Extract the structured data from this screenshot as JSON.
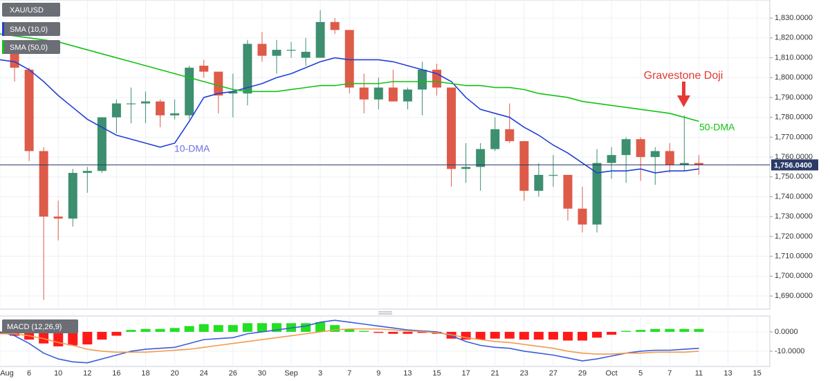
{
  "chart_data": [
    {
      "type": "candlestick",
      "title": "XAU/USD",
      "categories": [
        "Aug",
        null,
        "6",
        null,
        "10",
        null,
        "12",
        null,
        "16",
        null,
        "18",
        null,
        "20",
        null,
        "24",
        null,
        "26",
        null,
        "30",
        null,
        "Sep",
        null,
        "3",
        null,
        "7",
        null,
        "9",
        null,
        "13",
        null,
        "15",
        null,
        "17",
        null,
        "21",
        null,
        "23",
        null,
        "27",
        null,
        "29",
        null,
        "Oct",
        null,
        "5",
        null,
        "7",
        null,
        "11",
        null,
        "13",
        null,
        "15"
      ],
      "open": [
        null,
        1813,
        1804,
        1763,
        1730,
        1729,
        1752,
        1753,
        1780,
        1787,
        1787,
        1788,
        1781,
        1781,
        1806,
        1803,
        1792,
        1792,
        1817,
        1811,
        1814,
        1810,
        1810,
        1828,
        1824,
        1795,
        1789,
        1795,
        1788,
        1794,
        1804,
        1795,
        1754,
        1755,
        1764,
        1774,
        1768,
        1743,
        1751,
        1751,
        1734,
        1726,
        1757,
        1761,
        1769,
        1760,
        1763,
        1756,
        1757,
        null,
        null,
        null,
        null
      ],
      "high": [
        null,
        1816,
        1805,
        1765,
        1738,
        1754,
        1755,
        1780,
        1789,
        1795,
        1793,
        1789,
        1789,
        1806,
        1809,
        1803,
        1802,
        1819,
        1823,
        1819,
        1818,
        1820,
        1834,
        1830,
        1824,
        1802,
        1800,
        1804,
        1795,
        1808,
        1807,
        1795,
        1767,
        1767,
        1780,
        1787,
        1768,
        1757,
        1761,
        1751,
        1745,
        1764,
        1765,
        1770,
        1770,
        1765,
        1767,
        1781,
        1761,
        null,
        null,
        null,
        null
      ],
      "low": [
        null,
        1798,
        1758,
        1688,
        1718,
        1725,
        1742,
        1752,
        1772,
        1777,
        1777,
        1775,
        1779,
        1779,
        1800,
        1782,
        1780,
        1786,
        1808,
        1802,
        1810,
        1806,
        1810,
        1822,
        1792,
        1782,
        1784,
        1788,
        1784,
        1781,
        1791,
        1745,
        1747,
        1743,
        1763,
        1767,
        1738,
        1740,
        1745,
        1728,
        1722,
        1722,
        1749,
        1747,
        1748,
        1746,
        1752,
        1753,
        1751,
        null,
        null,
        null,
        null
      ],
      "close": [
        null,
        1805,
        1763,
        1730,
        1729,
        1752,
        1753,
        1780,
        1787,
        1787,
        1788,
        1781,
        1782,
        1805,
        1803,
        1791,
        1793,
        1817,
        1811,
        1814,
        1814,
        1813,
        1828,
        1824,
        1795,
        1789,
        1795,
        1788,
        1794,
        1804,
        1795,
        1754,
        1755,
        1764,
        1774,
        1768,
        1743,
        1751,
        1751,
        1734,
        1726,
        1757,
        1761,
        1769,
        1760,
        1763,
        1756,
        1757,
        1756,
        null,
        null,
        null,
        null
      ],
      "up_color": "#3d8f6f",
      "down_color": "#de5b49",
      "series": [
        {
          "name": "SMA (10,0)",
          "color": "#1f3fd6",
          "values": [
            1809,
            1808,
            1804,
            1798,
            1791,
            1785,
            1779,
            1775,
            1771,
            1769,
            1767,
            1765,
            1767,
            1778,
            1790,
            1792,
            1793,
            1795,
            1797,
            1800,
            1802,
            1805,
            1808,
            1810,
            1809,
            1809,
            1809,
            1808,
            1806,
            1804,
            1802,
            1798,
            1790,
            1784,
            1782,
            1780,
            1775,
            1771,
            1766,
            1762,
            1757,
            1752,
            1753,
            1753,
            1754,
            1752,
            1753,
            1753,
            1754,
            null,
            null,
            null,
            null
          ]
        },
        {
          "name": "SMA (50,0)",
          "color": "#12c212",
          "values": [
            1822,
            1821,
            1820,
            1819,
            1818,
            1816,
            1814,
            1812,
            1810,
            1808,
            1806,
            1804,
            1802,
            1800,
            1798,
            1796,
            1794,
            1793,
            1793,
            1793,
            1794,
            1795,
            1796,
            1796,
            1797,
            1797,
            1797,
            1798,
            1798,
            1798,
            1798,
            1797,
            1796,
            1796,
            1795,
            1795,
            1794,
            1792,
            1791,
            1790,
            1788,
            1787,
            1786,
            1785,
            1784,
            1783,
            1782,
            1780,
            1778,
            null,
            null,
            null,
            null
          ]
        }
      ],
      "annotations": [
        {
          "text": "Gravestone Doji",
          "color": "#e53935"
        },
        {
          "text": "50-DMA",
          "color": "#12c212"
        },
        {
          "text": "10-DMA",
          "color": "#6f6fe8"
        }
      ],
      "last_price": {
        "value": 1756.04,
        "label": "1,756.0400"
      },
      "ylim": [
        1683.4,
        1839.1
      ],
      "yticks": [
        {
          "value": 1690,
          "label": "1,690.0000"
        },
        {
          "value": 1700,
          "label": "1,700.0000"
        },
        {
          "value": 1710,
          "label": "1,710.0000"
        },
        {
          "value": 1720,
          "label": "1,720.0000"
        },
        {
          "value": 1730,
          "label": "1,730.0000"
        },
        {
          "value": 1740,
          "label": "1,740.0000"
        },
        {
          "value": 1750,
          "label": "1,750.0000"
        },
        {
          "value": 1760,
          "label": "1,760.0000"
        },
        {
          "value": 1770,
          "label": "1,770.0000"
        },
        {
          "value": 1780,
          "label": "1,780.0000"
        },
        {
          "value": 1790,
          "label": "1,790.0000"
        },
        {
          "value": 1800,
          "label": "1,800.0000"
        },
        {
          "value": 1810,
          "label": "1,810.0000"
        },
        {
          "value": 1820,
          "label": "1,820.0000"
        },
        {
          "value": 1830,
          "label": "1,830.0000"
        }
      ],
      "grid": true
    },
    {
      "type": "macd",
      "title": "MACD (12,26,9)",
      "histogram": [
        -1,
        -2,
        -4,
        -6,
        -7.5,
        -7,
        -6.5,
        -4,
        -2,
        1,
        1.5,
        1.5,
        2,
        3,
        4,
        3.5,
        3.5,
        4.5,
        4.5,
        4.5,
        4.5,
        4.5,
        5,
        3.5,
        1.5,
        0.5,
        -0.5,
        -1,
        -1,
        -0.5,
        -1,
        -3.5,
        -4,
        -4,
        -3.5,
        -3.5,
        -4,
        -4,
        -4,
        -4.5,
        -4.5,
        -3,
        -1.5,
        0.5,
        1,
        1.5,
        1.5,
        1.5,
        1.5,
        null,
        null,
        null,
        null
      ],
      "up_color": "#22e022",
      "down_color": "#ff1a1a",
      "series": [
        {
          "color": "#3b5bdb",
          "values": [
            0,
            -2,
            -6,
            -11,
            -14,
            -15.5,
            -16,
            -14,
            -12,
            -10,
            -9,
            -8.5,
            -8,
            -6,
            -4,
            -3.5,
            -3,
            -1,
            0,
            1,
            2,
            3,
            5,
            6,
            5,
            4,
            3,
            2,
            1,
            0.5,
            0,
            -2,
            -5,
            -7,
            -8,
            -8.5,
            -10,
            -11,
            -12,
            -13.5,
            -15,
            -14,
            -12.5,
            -11,
            -10,
            -9.5,
            -9.5,
            -9,
            -8.5,
            null,
            null,
            null,
            null
          ]
        },
        {
          "color": "#f39a4a",
          "values": [
            -1,
            -1,
            -2,
            -3.5,
            -5.5,
            -7,
            -9,
            -10,
            -10.5,
            -10.5,
            -10.5,
            -10,
            -9.5,
            -9,
            -8,
            -7,
            -6,
            -5,
            -4,
            -3,
            -2,
            -1,
            0,
            1,
            1.5,
            1.5,
            1.5,
            1,
            0.5,
            0.2,
            -0.5,
            -1.5,
            -3,
            -4,
            -5,
            -5.5,
            -6.5,
            -7.5,
            -8.5,
            -10,
            -11,
            -11.5,
            -11.5,
            -11,
            -11,
            -10.5,
            -10.5,
            -10.5,
            -10,
            null,
            null,
            null,
            null
          ]
        }
      ],
      "ylim": [
        -17.9,
        8.2
      ],
      "yticks": [
        {
          "value": -10,
          "label": "-10.0000"
        },
        {
          "value": 0,
          "label": "0.0000"
        }
      ],
      "grid": true
    }
  ]
}
